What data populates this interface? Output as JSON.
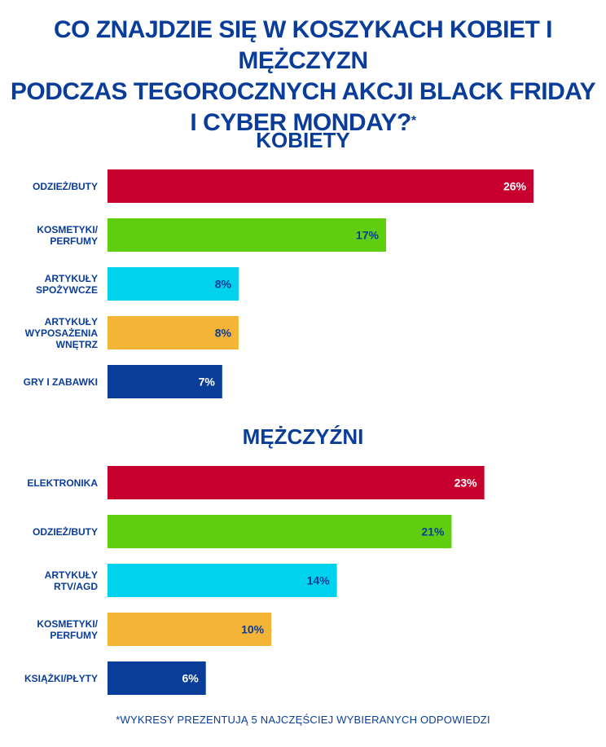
{
  "title": {
    "lines": [
      "CO ZNAJDZIE SIĘ W KOSZYKACH KOBIET I MĘŻCZYZN",
      "PODCZAS TEGOROCZNYCH AKCJI BLACK FRIDAY",
      "I CYBER MONDAY?"
    ],
    "asterisk": "*"
  },
  "footnote": "*WYKRESY PREZENTUJĄ 5 NAJCZĘŚCIEJ WYBIERANYCH ODPOWIEDZI",
  "colors": {
    "text": "#0a3d9a",
    "bar_colors": [
      "#c8002e",
      "#5fce0f",
      "#00d2ee",
      "#f4b536",
      "#0a3d9a"
    ],
    "label_colors": [
      "#ffffff",
      "#0a3d9a",
      "#0a3d9a",
      "#0a3d9a",
      "#ffffff"
    ]
  },
  "chart_data": [
    {
      "type": "bar",
      "orientation": "horizontal",
      "title": "KOBIETY",
      "categories": [
        [
          "ODZIEŻ/BUTY"
        ],
        [
          "KOSMETYKI/",
          "PERFUMY"
        ],
        [
          "ARTYKUŁY",
          "SPOŻYWCZE"
        ],
        [
          "ARTYKUŁY",
          "WYPOSAŻENIA",
          "WNĘTRZ"
        ],
        [
          "GRY I ZABAWKI"
        ]
      ],
      "values": [
        26,
        17,
        8,
        8,
        7
      ],
      "value_labels": [
        "26%",
        "17%",
        "8%",
        "8%",
        "7%"
      ],
      "unit": "%",
      "grid": false
    },
    {
      "type": "bar",
      "orientation": "horizontal",
      "title": "MĘŻCZYŹNI",
      "categories": [
        [
          "ELEKTRONIKA"
        ],
        [
          "ODZIEŻ/BUTY"
        ],
        [
          "ARTYKUŁY",
          "RTV/AGD"
        ],
        [
          "KOSMETYKI/",
          "PERFUMY"
        ],
        [
          "KSIĄŻKI/PŁYTY"
        ]
      ],
      "values": [
        23,
        21,
        14,
        10,
        6
      ],
      "value_labels": [
        "23%",
        "21%",
        "14%",
        "10%",
        "6%"
      ],
      "unit": "%",
      "grid": false
    }
  ]
}
